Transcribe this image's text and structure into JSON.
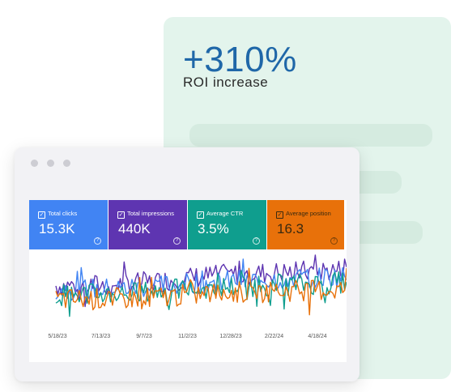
{
  "roi": {
    "value": "+310%",
    "label": "ROI increase"
  },
  "metrics": [
    {
      "label": "Total clicks",
      "value": "15.3K",
      "color": "#4184f3"
    },
    {
      "label": "Total impressions",
      "value": "440K",
      "color": "#5e35b1"
    },
    {
      "label": "Average CTR",
      "value": "3.5%",
      "color": "#0f9e8e"
    },
    {
      "label": "Average position",
      "value": "16.3",
      "color": "#e8710a"
    }
  ],
  "help_glyph": "?",
  "check_glyph": "✓",
  "chart_data": {
    "type": "line",
    "xtick_labels": [
      "5/18/23",
      "7/13/23",
      "9/7/23",
      "11/2/23",
      "12/28/23",
      "2/22/24",
      "4/18/24"
    ],
    "series": [
      {
        "color": "#5e35b1",
        "level": [
          0.55,
          0.56,
          0.6,
          0.68,
          0.72,
          0.75,
          0.78
        ]
      },
      {
        "color": "#4184f3",
        "level": [
          0.5,
          0.5,
          0.54,
          0.6,
          0.63,
          0.66,
          0.68
        ]
      },
      {
        "color": "#0f9e8e",
        "level": [
          0.42,
          0.43,
          0.46,
          0.52,
          0.55,
          0.57,
          0.6
        ]
      },
      {
        "color": "#e8710a",
        "level": [
          0.35,
          0.36,
          0.38,
          0.43,
          0.46,
          0.48,
          0.5
        ]
      }
    ]
  }
}
